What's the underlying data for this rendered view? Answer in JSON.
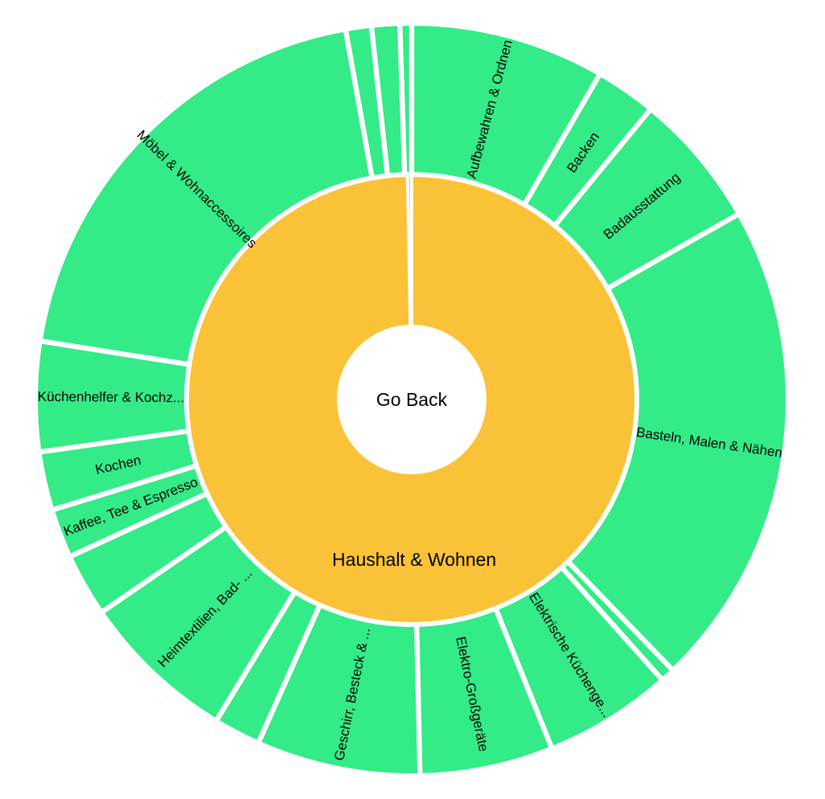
{
  "chart_data": {
    "type": "sunburst",
    "center_label": "Go Back",
    "colors": {
      "inner": "#FAC236",
      "outer": "#33EB87",
      "center": "#FFFFFF",
      "separator": "#FFFFFF"
    },
    "inner": [
      {
        "label": "Haushalt & Wohnen",
        "value": 99.7
      },
      {
        "label": "",
        "value": 0.3
      }
    ],
    "outer": [
      {
        "label": "Aufbewahren & Ordnen",
        "value": 8.3
      },
      {
        "label": "Backen",
        "value": 2.6
      },
      {
        "label": "Badausstattung",
        "value": 5.8
      },
      {
        "label": "Basteln, Malen & Nähen",
        "value": 20.9
      },
      {
        "label": "",
        "value": 0.6
      },
      {
        "label": "Elektrische Küchenge...",
        "value": 5.5
      },
      {
        "label": "Elektro-Großgeräte",
        "value": 5.7
      },
      {
        "label": "Geschirr, Besteck & ...",
        "value": 7.0
      },
      {
        "label": "",
        "value": 2.0
      },
      {
        "label": "Heimtextilien, Bad- ...",
        "value": 6.7
      },
      {
        "label": "",
        "value": 2.7
      },
      {
        "label": "Kaffee, Tee & Espresso",
        "value": 2.1
      },
      {
        "label": "Kochen",
        "value": 2.5
      },
      {
        "label": "Küchenhelfer & Kochz...",
        "value": 4.7
      },
      {
        "label": "Möbel & Wohnaccessoires",
        "value": 19.6
      },
      {
        "label": "",
        "value": 1.1
      },
      {
        "label": "",
        "value": 1.2
      },
      {
        "label": "",
        "value": 0.5
      }
    ]
  }
}
